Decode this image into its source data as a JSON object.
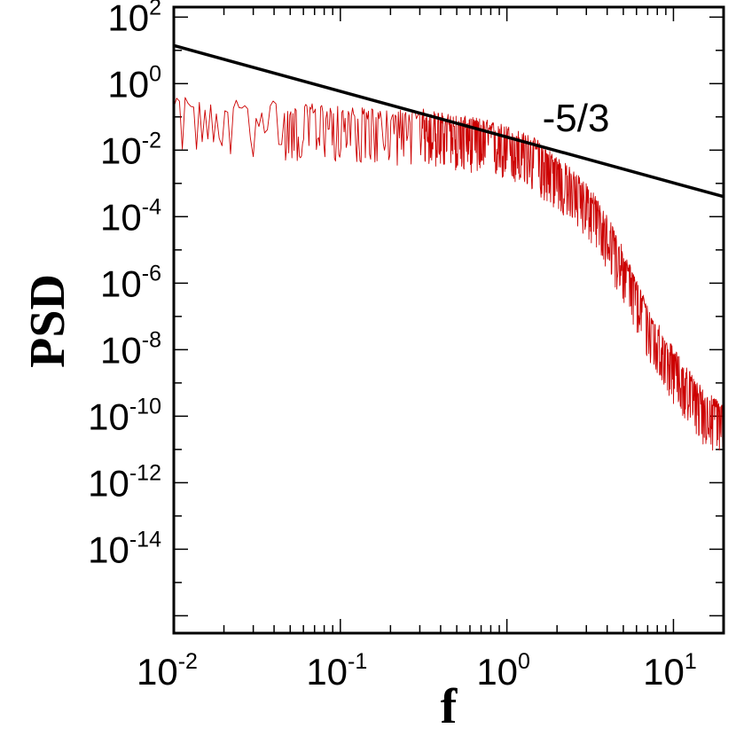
{
  "chart_data": {
    "type": "line",
    "title": "",
    "xlabel": "f",
    "ylabel": "PSD",
    "x_scale": "log",
    "y_scale": "log",
    "xlim": [
      0.01,
      20
    ],
    "ylim": [
      3e-17,
      200
    ],
    "grid": false,
    "legend": "none",
    "x_ticks": [
      {
        "value": 0.01,
        "base": "10",
        "exp": "-2"
      },
      {
        "value": 0.1,
        "base": "10",
        "exp": "-1"
      },
      {
        "value": 1,
        "base": "10",
        "exp": "0"
      },
      {
        "value": 10,
        "base": "10",
        "exp": "1"
      }
    ],
    "y_ticks": [
      {
        "value": 100,
        "base": "10",
        "exp": "2"
      },
      {
        "value": 1,
        "base": "10",
        "exp": "0"
      },
      {
        "value": 0.01,
        "base": "10",
        "exp": "-2"
      },
      {
        "value": 0.0001,
        "base": "10",
        "exp": "-4"
      },
      {
        "value": 1e-06,
        "base": "10",
        "exp": "-6"
      },
      {
        "value": 1e-08,
        "base": "10",
        "exp": "-8"
      },
      {
        "value": 1e-10,
        "base": "10",
        "exp": "-10"
      },
      {
        "value": 1e-12,
        "base": "10",
        "exp": "-12"
      },
      {
        "value": 1e-14,
        "base": "10",
        "exp": "-14"
      }
    ],
    "series": [
      {
        "color": "#cc0000",
        "x": [
          0.01,
          0.012,
          0.015,
          0.02,
          0.025,
          0.03,
          0.04,
          0.05,
          0.07,
          0.1,
          0.15,
          0.2,
          0.3,
          0.4,
          0.5,
          0.7,
          1,
          1.5,
          2,
          3,
          4,
          5,
          7,
          10,
          15,
          20
        ],
        "y": [
          0.15,
          0.2,
          0.12,
          0.1,
          0.18,
          0.12,
          0.15,
          0.08,
          0.12,
          0.09,
          0.08,
          0.07,
          0.08,
          0.06,
          0.05,
          0.04,
          0.025,
          0.01,
          0.003,
          0.0005,
          5e-05,
          5e-06,
          1e-07,
          5e-09,
          3e-10,
          1e-10
        ],
        "fluctuation_decades": 0.6
      },
      {
        "color": "#000000",
        "x": [
          0.01,
          20
        ],
        "y": [
          14,
          0.0004
        ]
      }
    ],
    "annotations": [
      {
        "text": "-5/3",
        "x": 2.6,
        "y": 0.1
      }
    ]
  }
}
